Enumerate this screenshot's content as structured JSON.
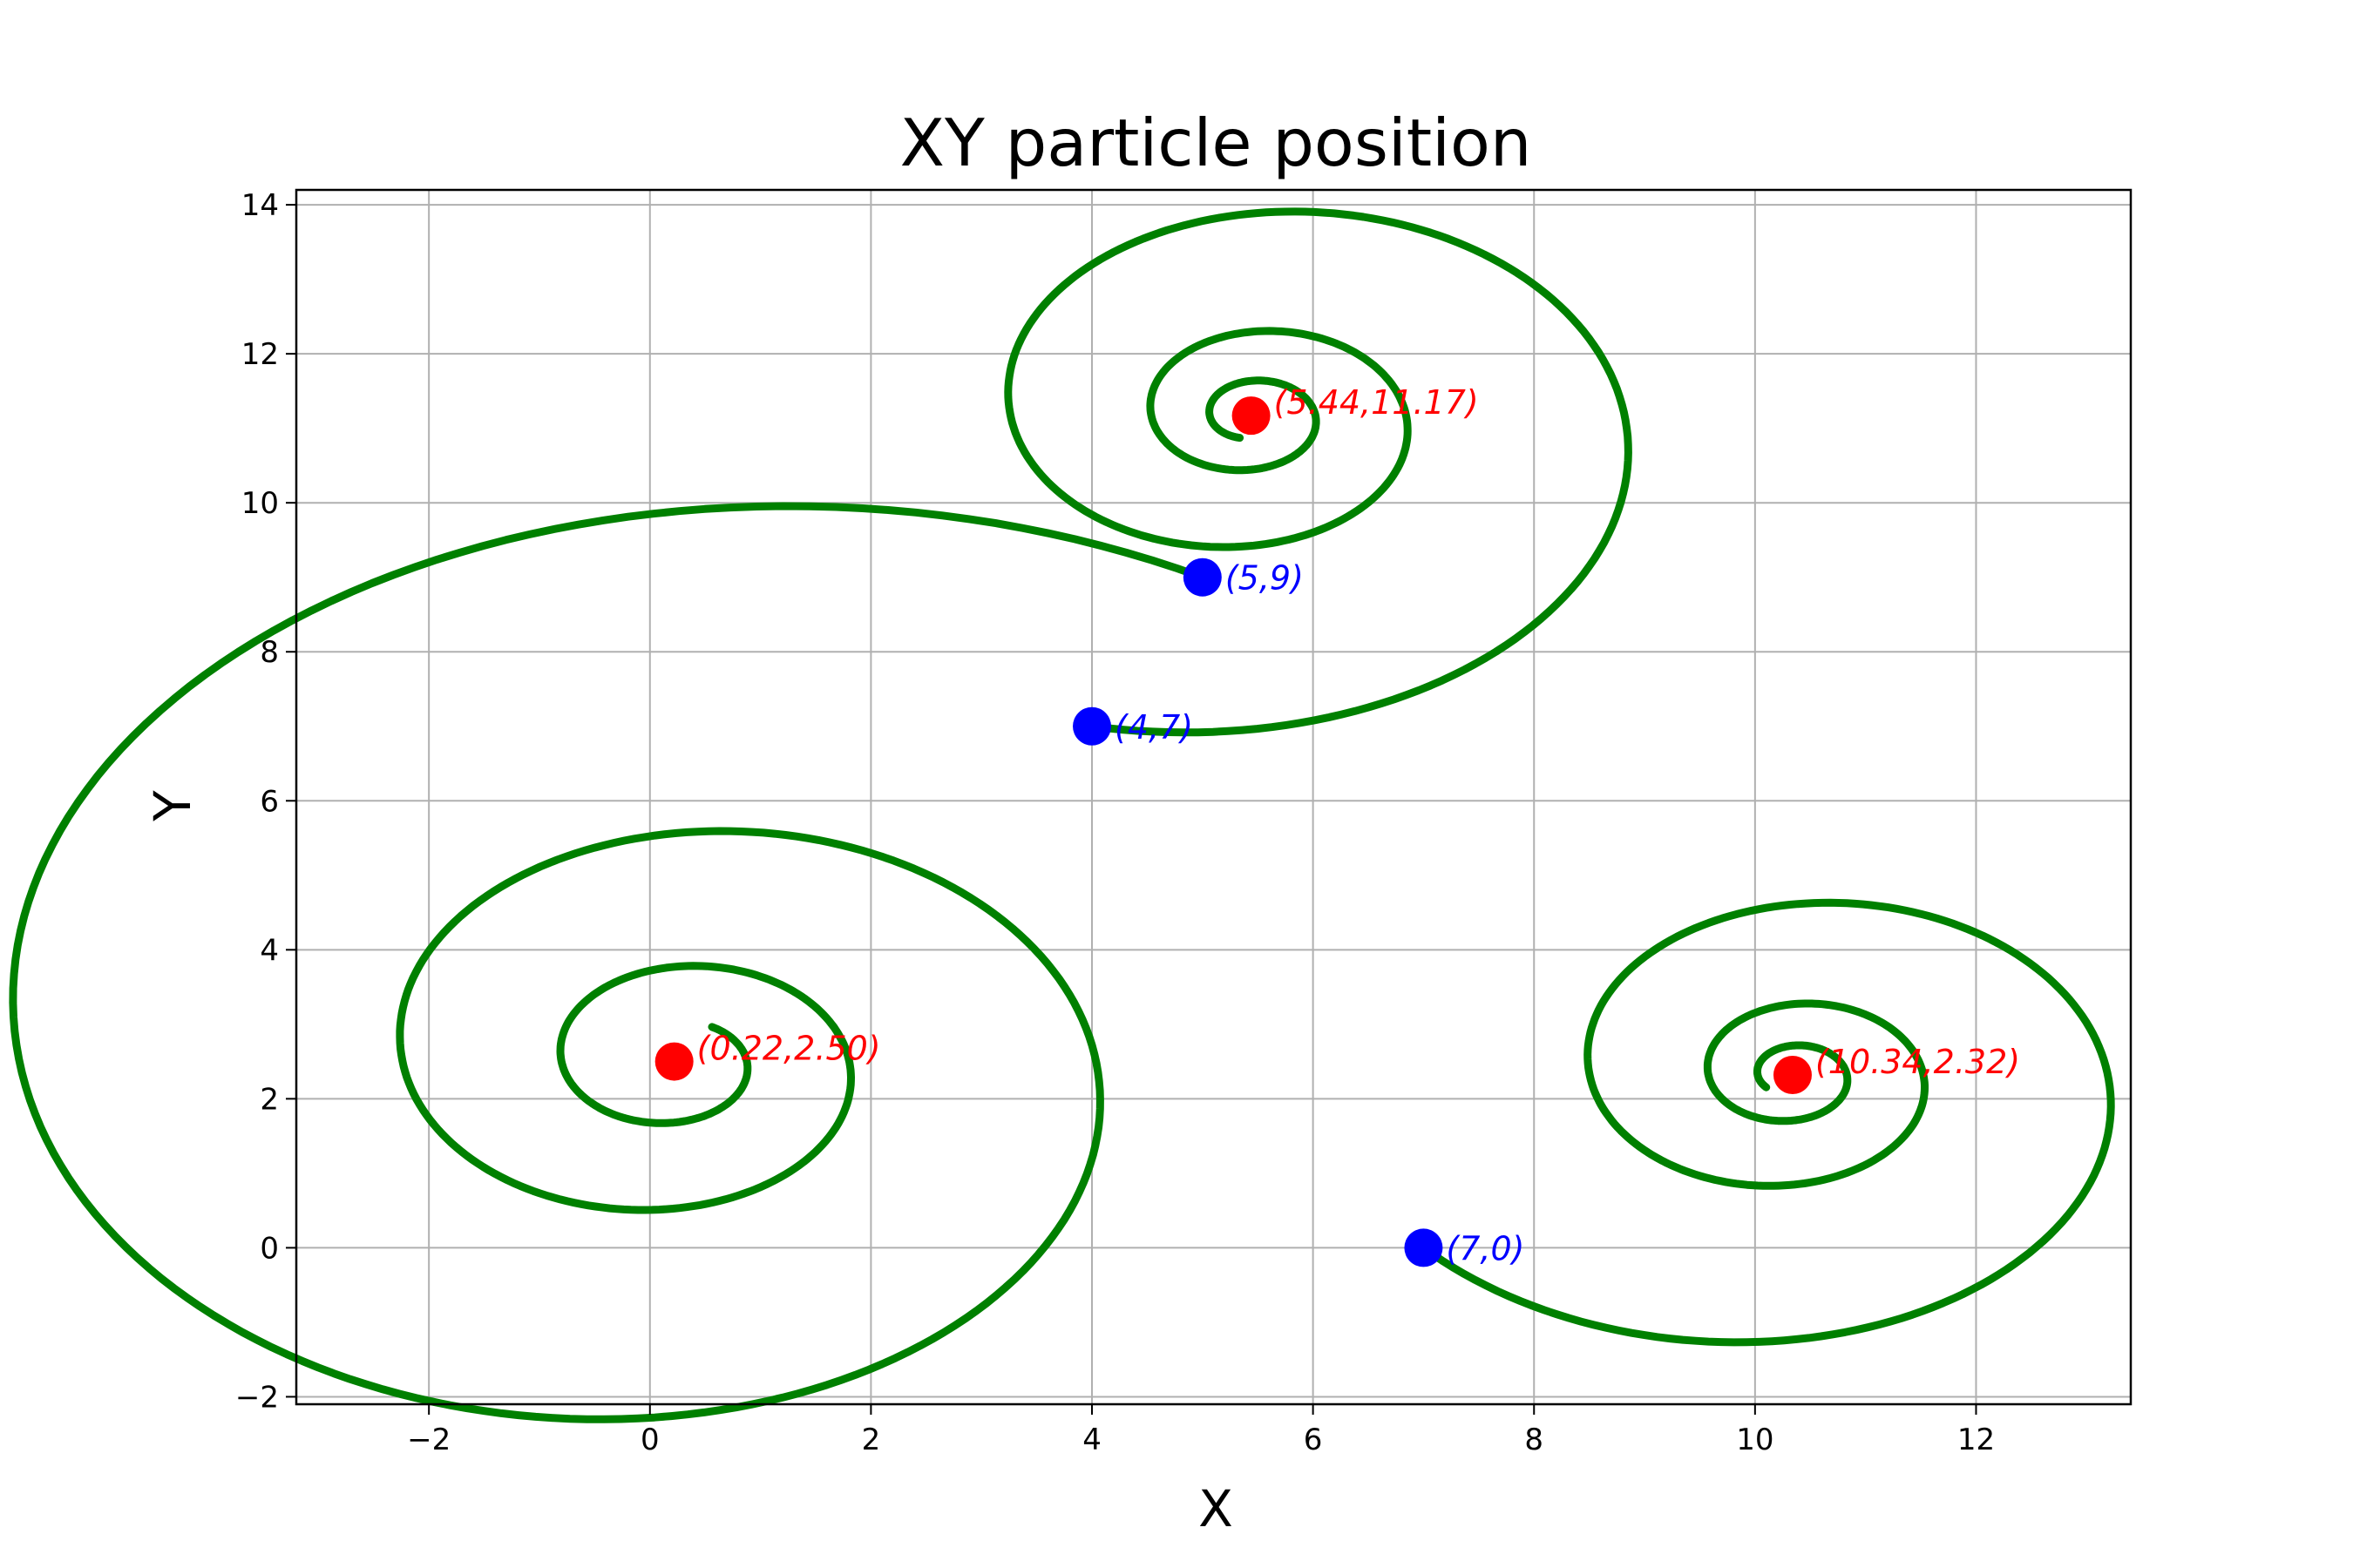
{
  "chart_data": {
    "type": "line",
    "title": "XY particle position",
    "xlabel": "X",
    "ylabel": "Y",
    "xlim": [
      -3.2,
      13.4
    ],
    "ylim": [
      -2.1,
      14.2
    ],
    "xticks": [
      -2,
      0,
      2,
      4,
      6,
      8,
      10,
      12
    ],
    "yticks": [
      -2,
      0,
      2,
      4,
      6,
      8,
      10,
      12,
      14
    ],
    "grid": true,
    "line_color": "#008000",
    "start_color": "#0000ff",
    "end_color": "#ff0000",
    "trajectories": [
      {
        "start": [
          5,
          9
        ],
        "start_label": "(5,9)",
        "end": [
          0.22,
          2.5
        ],
        "end_label": "(0.22,2.50)"
      },
      {
        "start": [
          4,
          7
        ],
        "start_label": "(4,7)",
        "end": [
          5.44,
          11.17
        ],
        "end_label": "(5.44,11.17)"
      },
      {
        "start": [
          7,
          0
        ],
        "start_label": "(7,0)",
        "end": [
          10.34,
          2.32
        ],
        "end_label": "(10.34,2.32)"
      }
    ]
  }
}
